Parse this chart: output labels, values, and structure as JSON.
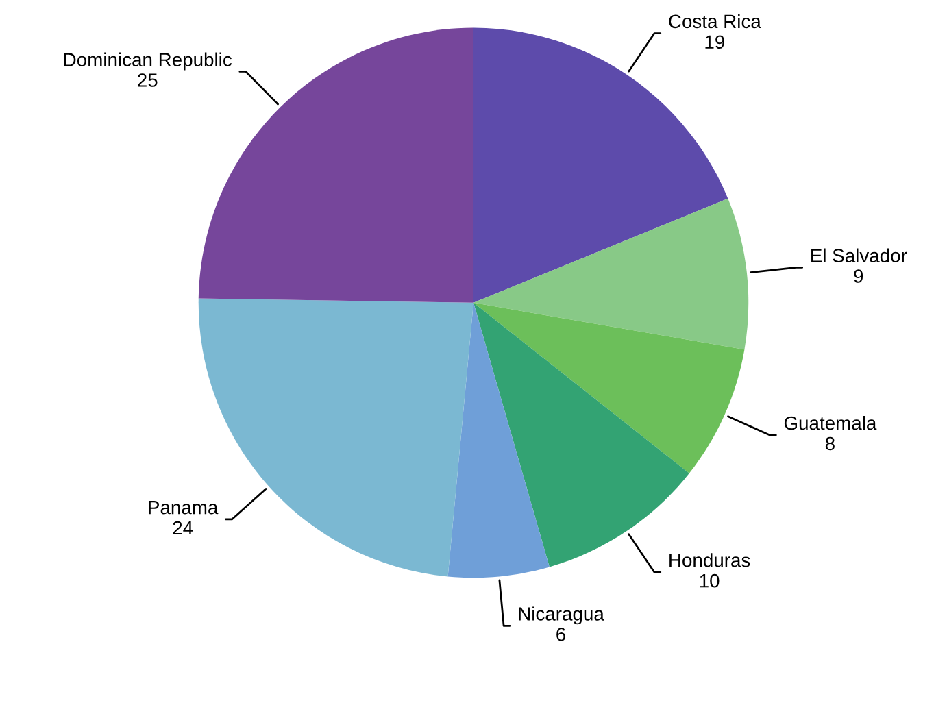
{
  "chart_data": {
    "type": "pie",
    "categories": [
      "Costa Rica",
      "El Salvador",
      "Guatemala",
      "Honduras",
      "Nicaragua",
      "Panama",
      "Dominican Republic"
    ],
    "values": [
      19,
      9,
      8,
      10,
      6,
      24,
      25
    ],
    "colors": [
      "#5d4bab",
      "#88c987",
      "#6cbf5a",
      "#33a373",
      "#6f9fd8",
      "#7bb8d2",
      "#76469b"
    ],
    "data_labels": true
  }
}
